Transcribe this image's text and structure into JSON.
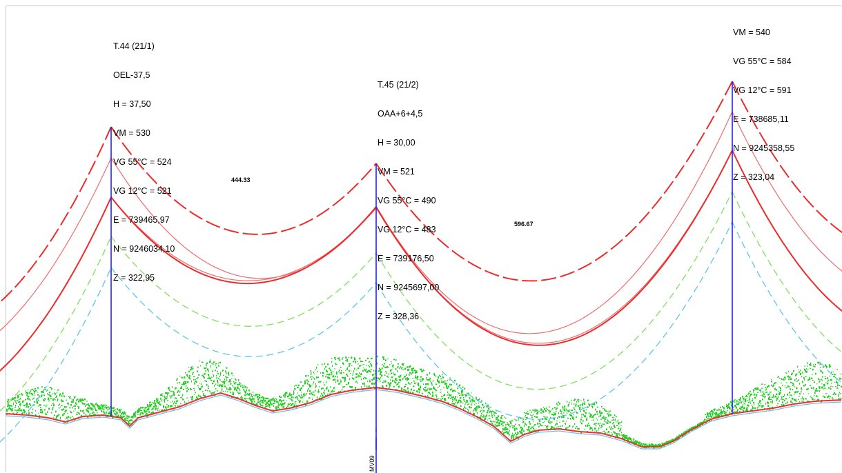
{
  "towers": [
    {
      "id": "t44",
      "lines": [
        "T.44 (21/1)",
        "OEL-37,5",
        "H = 37,50",
        "VM = 530",
        "VG 55°C = 524",
        "VG 12°C = 521",
        "E = 739465,97",
        "N = 9246034,10",
        "Z = 322,95"
      ]
    },
    {
      "id": "t45",
      "lines": [
        "T.45 (21/2)",
        "OAA+6+4,5",
        "H = 30,00",
        "VM = 521",
        "VG 55°C = 490",
        "VG 12°C = 483",
        "E = 739176,50",
        "N = 9245697,00",
        "Z = 328,36"
      ]
    },
    {
      "id": "t46",
      "lines": [
        "VM = 540",
        "VG 55°C = 584",
        "VG 12°C = 591",
        "E = 738685,11",
        "N = 9245358,55",
        "Z = 323,04"
      ]
    }
  ],
  "spans": [
    {
      "id": "span1",
      "length": "444.33"
    },
    {
      "id": "span2",
      "length": "596.67"
    }
  ],
  "vertical_label": "MV09",
  "colors": {
    "tower": "#2424d6",
    "conductor": "#ee2a2a",
    "conductor_thin": "#f26b6b",
    "clearance_green": "#7ee05a",
    "clearance_blue": "#5cc6ec",
    "vegetation": "#22d022",
    "ground": "#e8322d"
  }
}
